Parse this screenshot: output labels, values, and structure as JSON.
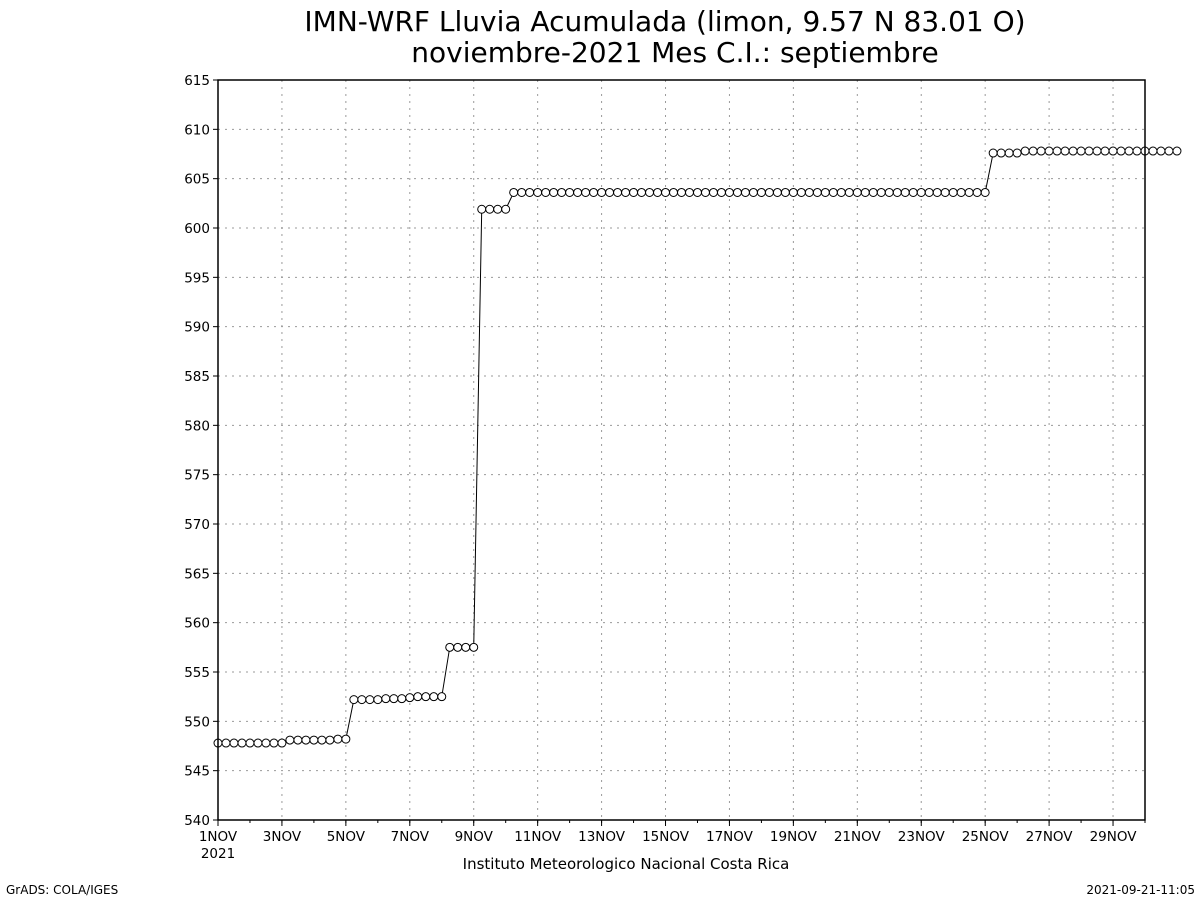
{
  "chart_data": {
    "type": "line",
    "title": "IMN-WRF  Lluvia Acumulada (limon, 9.57  N 83.01  O)",
    "subtitle": "noviembre-2021 Mes C.I.: septiembre",
    "xlabel": "",
    "ylabel": "",
    "ylim": [
      540,
      615
    ],
    "y_ticks": [
      "540",
      "545",
      "550",
      "555",
      "560",
      "565",
      "570",
      "575",
      "580",
      "585",
      "590",
      "595",
      "600",
      "605",
      "610",
      "615"
    ],
    "xlim_days": [
      1,
      30
    ],
    "x_ticks": [
      {
        "day": 1,
        "label": "1NOV",
        "sublabel": "2021"
      },
      {
        "day": 3,
        "label": "3NOV"
      },
      {
        "day": 5,
        "label": "5NOV"
      },
      {
        "day": 7,
        "label": "7NOV"
      },
      {
        "day": 9,
        "label": "9NOV"
      },
      {
        "day": 11,
        "label": "11NOV"
      },
      {
        "day": 13,
        "label": "13NOV"
      },
      {
        "day": 15,
        "label": "15NOV"
      },
      {
        "day": 17,
        "label": "17NOV"
      },
      {
        "day": 19,
        "label": "19NOV"
      },
      {
        "day": 21,
        "label": "21NOV"
      },
      {
        "day": 23,
        "label": "23NOV"
      },
      {
        "day": 25,
        "label": "25NOV"
      },
      {
        "day": 27,
        "label": "27NOV"
      },
      {
        "day": 29,
        "label": "29NOV"
      }
    ],
    "grid": true,
    "marker": "open-circle",
    "points_per_day": 4,
    "series": [
      {
        "values": [
          547.8,
          547.8,
          547.8,
          547.8,
          547.8,
          547.8,
          547.8,
          547.8,
          547.8,
          548.1,
          548.1,
          548.1,
          548.1,
          548.1,
          548.1,
          548.2,
          548.2,
          552.2,
          552.2,
          552.2,
          552.2,
          552.3,
          552.3,
          552.3,
          552.4,
          552.5,
          552.5,
          552.5,
          552.5,
          557.5,
          557.5,
          557.5,
          557.5,
          601.9,
          601.9,
          601.9,
          601.9,
          603.6,
          603.6,
          603.6,
          603.6,
          603.6,
          603.6,
          603.6,
          603.6,
          603.6,
          603.6,
          603.6,
          603.6,
          603.6,
          603.6,
          603.6,
          603.6,
          603.6,
          603.6,
          603.6,
          603.6,
          603.6,
          603.6,
          603.6,
          603.6,
          603.6,
          603.6,
          603.6,
          603.6,
          603.6,
          603.6,
          603.6,
          603.6,
          603.6,
          603.6,
          603.6,
          603.6,
          603.6,
          603.6,
          603.6,
          603.6,
          603.6,
          603.6,
          603.6,
          603.6,
          603.6,
          603.6,
          603.6,
          603.6,
          603.6,
          603.6,
          603.6,
          603.6,
          603.6,
          603.6,
          603.6,
          603.6,
          603.6,
          603.6,
          603.6,
          603.6,
          607.6,
          607.6,
          607.6,
          607.6,
          607.8,
          607.8,
          607.8,
          607.8,
          607.8,
          607.8,
          607.8,
          607.8,
          607.8,
          607.8,
          607.8,
          607.8,
          607.8,
          607.8,
          607.8,
          607.8,
          607.8,
          607.8,
          607.8,
          607.8
        ]
      }
    ]
  },
  "footer": {
    "institution": "Instituto Meteorologico Nacional Costa Rica",
    "grads_credit": "GrADS: COLA/IGES",
    "timestamp": "2021-09-21-11:05"
  }
}
